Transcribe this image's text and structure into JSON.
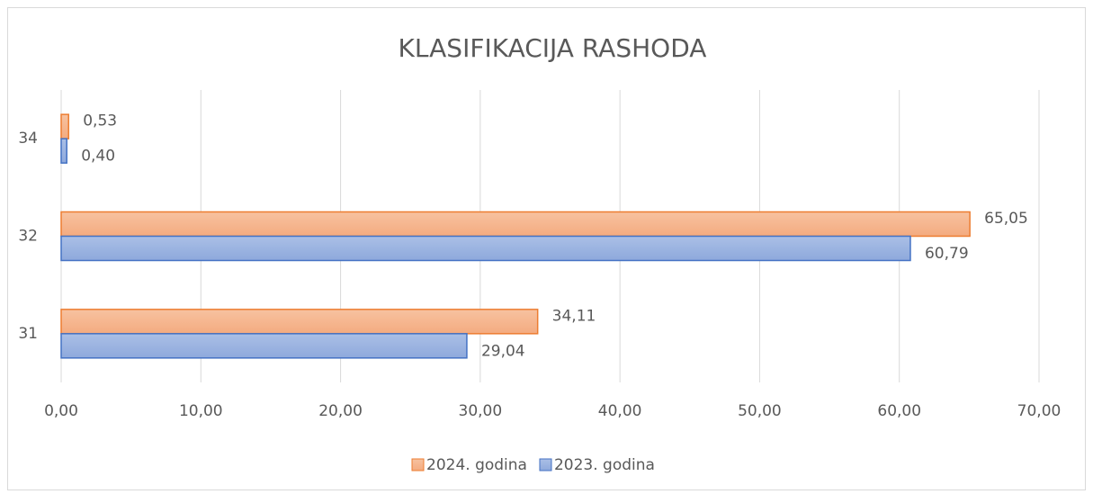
{
  "chart_data": {
    "type": "bar",
    "orientation": "horizontal",
    "title": "KLASIFIKACIJA RASHODA",
    "categories": [
      "31",
      "32",
      "34"
    ],
    "series": [
      {
        "name": "2024. godina",
        "color": "#ed7d31",
        "values": [
          34.11,
          65.05,
          0.53
        ],
        "value_labels": [
          "34,11",
          "65,05",
          "0,53"
        ]
      },
      {
        "name": "2023. godina",
        "color": "#4472c4",
        "values": [
          29.04,
          60.79,
          0.4
        ],
        "value_labels": [
          "29,04",
          "60,79",
          "0,40"
        ]
      }
    ],
    "xlim": [
      0,
      70
    ],
    "xticks": [
      {
        "value": 0,
        "label": "0,00"
      },
      {
        "value": 10,
        "label": "10,00"
      },
      {
        "value": 20,
        "label": "20,00"
      },
      {
        "value": 30,
        "label": "30,00"
      },
      {
        "value": 40,
        "label": "40,00"
      },
      {
        "value": 50,
        "label": "50,00"
      },
      {
        "value": 60,
        "label": "60,00"
      },
      {
        "value": 70,
        "label": "70,00"
      }
    ],
    "grid": true,
    "legend": "bottom"
  }
}
